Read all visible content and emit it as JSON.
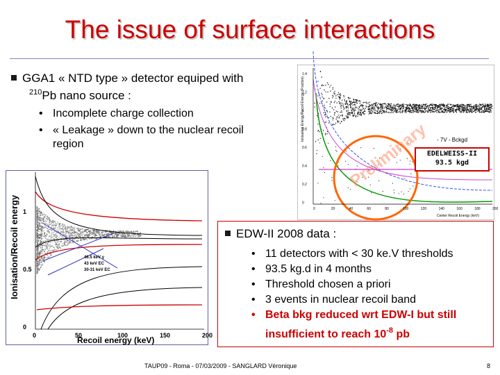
{
  "title": "The issue of surface interactions",
  "top_bullet": {
    "line1": "GGA1 « NTD type » detector equiped with",
    "sup": "210",
    "line2": "Pb nano source :",
    "subs": [
      "Incomplete charge collection",
      "« Leakage » down to the nuclear recoil",
      "region"
    ]
  },
  "right_plot": {
    "ylabel": "Ionisation Energy/Recoil Energy (Fraction)",
    "xlabel": "Center Recoil Energy (keV)",
    "yticks": [
      "1.4",
      "1.2",
      "1",
      "0.8",
      "0.6",
      "0.4",
      "0.2",
      "0"
    ],
    "xticks": [
      "0",
      "20",
      "40",
      "60",
      "80",
      "100",
      "120",
      "140",
      "160",
      "180",
      "200"
    ],
    "legend": "- 7V - Bckgd",
    "box_line1": "EDELWEISS-II",
    "box_line2": "93.5 kgd",
    "watermark": "Preliminary"
  },
  "left_plot": {
    "ylabel": "Ionisation/Recoil energy",
    "xlabel": "Recoil energy (keV)",
    "yticks": [
      "1",
      "0.5",
      "0"
    ],
    "xticks": [
      "0",
      "50",
      "100",
      "150",
      "200"
    ],
    "labels": [
      "46.5 keV γ",
      "43 keV EC",
      "30-31 keV EC"
    ]
  },
  "edw_bullet": {
    "heading": "EDW-II 2008 data :",
    "items": [
      "11 detectors with < 30 ke.V thresholds",
      "93.5 kg.d in 4 months",
      "Threshold chosen a priori",
      "3 events in nuclear recoil band"
    ],
    "red_line1": "Beta bkg reduced wrt EDW-I but still",
    "red_line2": "insufficient to reach 10",
    "red_sup": "-8",
    "red_end": " pb"
  },
  "footer": {
    "text": "TAUP09 - Roma - 07/03/2009 - SANGLARD Véronique",
    "page": "8"
  },
  "colors": {
    "title": "#cc0000",
    "box_border": "#cc0000",
    "frame_border": "#cc0000",
    "circle": "#ff6600"
  }
}
